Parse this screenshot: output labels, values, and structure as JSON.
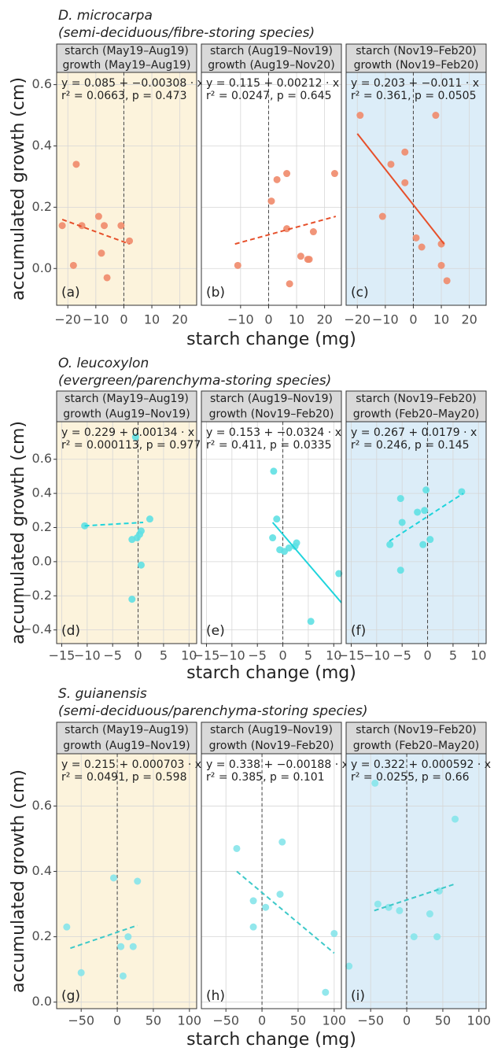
{
  "chart_data": [
    {
      "type": "scatter",
      "title": "D. microcarpa",
      "subtitle": "(semi-deciduous/fibre-storing species)",
      "ylabel": "accumulated growth (cm)",
      "strip": [
        "starch (May19–Aug19)",
        "growth (May19–Aug19)"
      ],
      "equation": [
        "y = 0.085 + −0.00308 · x",
        "r² = 0.0663,  p = 0.473"
      ],
      "panel_label": "(a)",
      "background": "#fcf3dc",
      "color": "#ef8a6a",
      "line_color": "#e6502b",
      "line_style": "dashed",
      "grid": true,
      "vline": 0,
      "xlim": [
        -24,
        26
      ],
      "xticks": [
        {
          "value": -20,
          "label": "−20"
        },
        {
          "value": -10,
          "label": "−10"
        },
        0,
        10,
        20
      ],
      "ylim": [
        -0.12,
        0.64
      ],
      "yticks": [
        {
          "value": 0,
          "label": "0.0"
        },
        0.2,
        0.4,
        0.6
      ],
      "x": [
        -22,
        -18,
        -17,
        -15,
        -9,
        -8,
        -7,
        -6,
        -1,
        2
      ],
      "values": [
        0.14,
        0.01,
        0.34,
        0.14,
        0.17,
        0.05,
        0.14,
        -0.03,
        0.14,
        0.09
      ],
      "fit": {
        "x": [
          -22,
          2
        ],
        "values": [
          0.16,
          0.08
        ]
      }
    },
    {
      "type": "scatter",
      "xlabel": "starch change (mg)",
      "strip": [
        "starch (Aug19–Nov19)",
        "growth (Aug19–Nov20)"
      ],
      "equation": [
        "y = 0.115 + 0.00212 · x",
        "r² = 0.0247,  p = 0.645"
      ],
      "panel_label": "(b)",
      "background": "#ffffff",
      "color": "#ef8a6a",
      "line_color": "#e6502b",
      "line_style": "dashed",
      "grid": true,
      "vline": 0,
      "xlim": [
        -24,
        26
      ],
      "xticks": [
        {
          "value": -10,
          "label": "−10"
        },
        0,
        10,
        20
      ],
      "ylim": [
        -0.12,
        0.64
      ],
      "yticks": [
        {
          "value": 0,
          "label": "0.0"
        },
        0.2,
        0.4,
        0.6
      ],
      "x": [
        -11,
        1,
        3,
        6.5,
        6.5,
        7.5,
        11.5,
        14,
        14.5,
        16,
        23.6
      ],
      "values": [
        0.01,
        0.22,
        0.29,
        0.31,
        0.13,
        -0.05,
        0.04,
        0.03,
        0.03,
        0.12,
        0.31
      ],
      "fit": {
        "x": [
          -12,
          24
        ],
        "values": [
          0.08,
          0.17
        ]
      }
    },
    {
      "type": "scatter",
      "strip": [
        "starch (Nov19–Feb20)",
        "growth (Nov19–Feb20)"
      ],
      "equation": [
        "y = 0.203 + −0.011 · x",
        "r² = 0.361,  p = 0.0505"
      ],
      "panel_label": "(c)",
      "background": "#dcedf8",
      "color": "#ef8a6a",
      "line_color": "#e6502b",
      "line_style": "solid",
      "grid": true,
      "vline": 0,
      "xlim": [
        -24,
        26
      ],
      "xticks": [
        {
          "value": -20,
          "label": "−20"
        },
        {
          "value": -10,
          "label": "−10"
        },
        0,
        10,
        20
      ],
      "ylim": [
        -0.12,
        0.64
      ],
      "yticks": [
        {
          "value": 0,
          "label": "0.0"
        },
        0.2,
        0.4,
        0.6
      ],
      "x": [
        -19,
        -8,
        -11,
        -3,
        -3,
        8,
        1,
        3,
        10,
        10,
        12
      ],
      "values": [
        0.5,
        0.34,
        0.17,
        0.38,
        0.28,
        0.5,
        0.1,
        0.07,
        0.08,
        0.01,
        -0.04
      ],
      "fit": {
        "x": [
          -20,
          11
        ],
        "values": [
          0.44,
          0.08
        ]
      }
    },
    {
      "type": "scatter",
      "title": "O. leucoxylon",
      "subtitle": "(evergreen/parenchyma-storing species)",
      "ylabel": "accumulated growth (cm)",
      "strip": [
        "starch (May19–Aug19)",
        "growth (Aug19–Nov19)"
      ],
      "equation": [
        "y = 0.229 + 0.00134 · x",
        "r² = 0.000113,  p = 0.977"
      ],
      "panel_label": "(d)",
      "background": "#fcf3dc",
      "color": "#5fe0e3",
      "line_color": "#1fd4dc",
      "line_style": "dashed",
      "grid": true,
      "vline": 0,
      "xlim": [
        -16,
        11.5
      ],
      "xticks": [
        {
          "value": -15,
          "label": "−15"
        },
        {
          "value": -10,
          "label": "−10"
        },
        {
          "value": -5,
          "label": "−5"
        },
        0,
        5,
        10
      ],
      "ylim": [
        -0.48,
        0.82
      ],
      "yticks": [
        {
          "value": -0.4,
          "label": "−0.4"
        },
        {
          "value": -0.2,
          "label": "−0.2"
        },
        {
          "value": 0,
          "label": "0.0"
        },
        0.2,
        0.4,
        0.6
      ],
      "x": [
        -10.5,
        -0.5,
        -1.2,
        -0.2,
        0.3,
        0.6,
        0.6,
        2.3,
        -1.2
      ],
      "values": [
        0.21,
        0.73,
        0.13,
        0.14,
        0.16,
        0.18,
        -0.02,
        0.25,
        -0.22
      ],
      "fit": {
        "x": [
          -10.5,
          1
        ],
        "values": [
          0.21,
          0.23
        ]
      }
    },
    {
      "type": "scatter",
      "xlabel": "starch change (mg)",
      "strip": [
        "starch (Aug19–Nov19)",
        "growth (Nov19–Feb20)"
      ],
      "equation": [
        "y = 0.153 + −0.0324 · x",
        "r² = 0.411,  p = 0.0335"
      ],
      "panel_label": "(e)",
      "background": "#ffffff",
      "color": "#5fe0e3",
      "line_color": "#1fd4dc",
      "line_style": "solid",
      "grid": true,
      "vline": 0,
      "xlim": [
        -16,
        11.5
      ],
      "xticks": [
        {
          "value": -15,
          "label": "−15"
        },
        {
          "value": -10,
          "label": "−10"
        },
        {
          "value": -5,
          "label": "−5"
        },
        0,
        5,
        10
      ],
      "ylim": [
        -0.48,
        0.82
      ],
      "yticks": [
        {
          "value": -0.4,
          "label": "−0.4"
        },
        {
          "value": -0.2,
          "label": "−0.2"
        },
        {
          "value": 0,
          "label": "0.0"
        },
        0.2,
        0.4,
        0.6
      ],
      "x": [
        -1.8,
        -2,
        -1.2,
        -0.6,
        0.3,
        1.2,
        2.4,
        2.7,
        11,
        5.5
      ],
      "values": [
        0.53,
        0.14,
        0.25,
        0.07,
        0.06,
        0.08,
        0.09,
        0.11,
        -0.07,
        -0.35
      ],
      "fit": {
        "x": [
          -2,
          11.5
        ],
        "values": [
          0.23,
          -0.24
        ]
      }
    },
    {
      "type": "scatter",
      "strip": [
        "starch (Nov19–Feb20)",
        "growth (Feb20–May20)"
      ],
      "equation": [
        "y = 0.267 + 0.0179 · x",
        "r² = 0.246,  p = 0.145"
      ],
      "panel_label": "(f)",
      "background": "#dcedf8",
      "color": "#5fe0e3",
      "line_color": "#1fd4dc",
      "line_style": "dashed",
      "grid": true,
      "vline": 0,
      "xlim": [
        -16,
        11.5
      ],
      "xticks": [
        {
          "value": -15,
          "label": "−15"
        },
        {
          "value": -10,
          "label": "−10"
        },
        {
          "value": -5,
          "label": "−5"
        },
        0,
        5,
        10
      ],
      "ylim": [
        -0.48,
        0.82
      ],
      "yticks": [
        {
          "value": -0.4,
          "label": "−0.4"
        },
        {
          "value": -0.2,
          "label": "−0.2"
        },
        {
          "value": 0,
          "label": "0.0"
        },
        0.2,
        0.4,
        0.6
      ],
      "x": [
        -7.4,
        -5.3,
        -5,
        -5.3,
        -2,
        -0.6,
        -0.3,
        -0.9,
        0.5,
        6.7
      ],
      "values": [
        0.1,
        0.37,
        0.23,
        -0.05,
        0.29,
        0.3,
        0.42,
        0.1,
        0.13,
        0.41
      ],
      "fit": {
        "x": [
          -7.5,
          7
        ],
        "values": [
          0.12,
          0.4
        ]
      }
    },
    {
      "type": "scatter",
      "title": "S. guianensis",
      "subtitle": "(semi-deciduous/parenchyma-storing species)",
      "ylabel": "accumulated growth (cm)",
      "strip": [
        "starch (May19–Aug19)",
        "growth (Aug19–Nov19)"
      ],
      "equation": [
        "y = 0.215 + 0.000703 · x",
        "r² = 0.0491,  p = 0.598"
      ],
      "panel_label": "(g)",
      "background": "#fcf3dc",
      "color": "#86e4ea",
      "line_color": "#3dc9c9",
      "line_style": "dashed",
      "grid": true,
      "vline": 0,
      "xlim": [
        -84,
        110
      ],
      "xticks": [
        {
          "value": -50,
          "label": "−50"
        },
        0,
        50,
        100
      ],
      "ylim": [
        -0.02,
        0.76
      ],
      "yticks": [
        {
          "value": 0,
          "label": "0.0"
        },
        0.2,
        0.4,
        0.6
      ],
      "x": [
        -70,
        -50,
        -5,
        5,
        8,
        15,
        22,
        28
      ],
      "values": [
        0.23,
        0.09,
        0.38,
        0.17,
        0.08,
        0.2,
        0.17,
        0.37
      ],
      "fit": {
        "x": [
          -65,
          28
        ],
        "values": [
          0.165,
          0.235
        ]
      }
    },
    {
      "type": "scatter",
      "xlabel": "starch change (mg)",
      "strip": [
        "starch (Aug19–Nov19)",
        "growth (Nov19–Feb20)"
      ],
      "equation": [
        "y = 0.338 + −0.00188 · x",
        "r² = 0.385,  p = 0.101"
      ],
      "panel_label": "(h)",
      "background": "#ffffff",
      "color": "#86e4ea",
      "line_color": "#3dc9c9",
      "line_style": "dashed",
      "grid": true,
      "vline": 0,
      "xlim": [
        -84,
        110
      ],
      "xticks": [
        {
          "value": -50,
          "label": "−50"
        },
        0,
        50,
        100
      ],
      "ylim": [
        -0.02,
        0.76
      ],
      "yticks": [
        {
          "value": 0,
          "label": "0.0"
        },
        0.2,
        0.4,
        0.6
      ],
      "x": [
        -35,
        -12,
        -12,
        5,
        25,
        28,
        88,
        100
      ],
      "values": [
        0.47,
        0.31,
        0.23,
        0.29,
        0.33,
        0.49,
        0.03,
        0.21
      ],
      "fit": {
        "x": [
          -35,
          100
        ],
        "values": [
          0.4,
          0.15
        ]
      }
    },
    {
      "type": "scatter",
      "strip": [
        "starch (Nov19–Feb20)",
        "growth (Feb20–May20)"
      ],
      "equation": [
        "y = 0.322 + 0.000592 · x",
        "r² = 0.0255,  p = 0.66"
      ],
      "panel_label": "(i)",
      "background": "#dcedf8",
      "color": "#86e4ea",
      "line_color": "#3dc9c9",
      "line_style": "dashed",
      "grid": true,
      "vline": 0,
      "xlim": [
        -84,
        110
      ],
      "xticks": [
        {
          "value": -50,
          "label": "−50"
        },
        0,
        50,
        100
      ],
      "ylim": [
        -0.02,
        0.76
      ],
      "yticks": [
        {
          "value": 0,
          "label": "0.0"
        },
        0.2,
        0.4,
        0.6
      ],
      "x": [
        -80,
        -40,
        -44,
        -25,
        -10,
        10,
        32,
        42,
        45,
        67
      ],
      "values": [
        0.11,
        0.3,
        0.67,
        0.29,
        0.28,
        0.2,
        0.27,
        0.2,
        0.34,
        0.56
      ],
      "fit": {
        "x": [
          -45,
          65
        ],
        "values": [
          0.28,
          0.36
        ]
      }
    }
  ]
}
